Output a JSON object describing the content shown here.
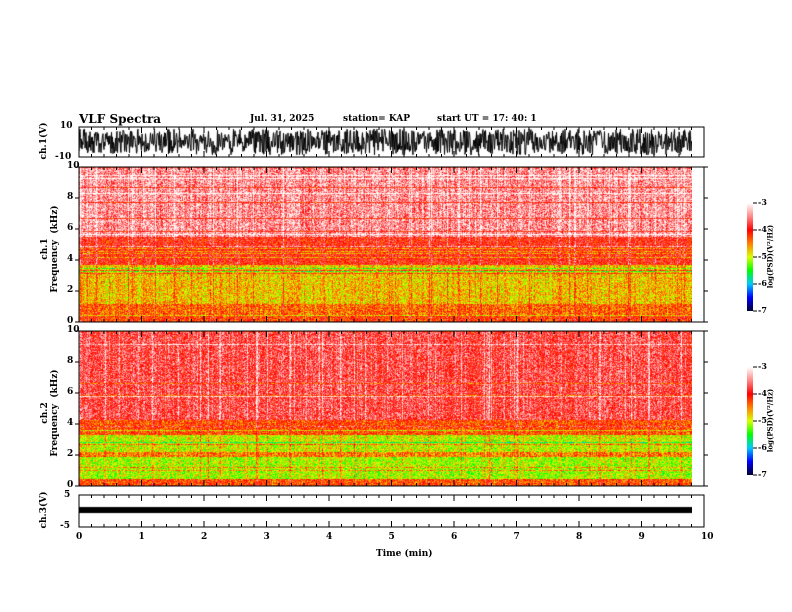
{
  "header": {
    "title": "VLF Spectra",
    "date": "Jul. 31, 2025",
    "station": "station= KAP",
    "start_ut": "start  UT  =   17: 40: 1"
  },
  "chart_data": [
    {
      "type": "line",
      "name": "ch1 waveform",
      "ylabel": "ch.1(V)",
      "ylim": [
        -10,
        10
      ],
      "yticks": [
        "10",
        "-10"
      ],
      "xlim": [
        0,
        10
      ],
      "data_extent_min": 9.8,
      "description_level": "noisy broadband waveform filling most of the range"
    },
    {
      "type": "heatmap",
      "name": "ch1 spectrogram",
      "ylabel": "ch.1\nFrequency  (kHz)",
      "ylim": [
        0,
        10
      ],
      "yticks": [
        "0",
        "2",
        "4",
        "6",
        "8",
        "10"
      ],
      "xlim": [
        0,
        10
      ],
      "bands_kHz_logPSD": [
        [
          0,
          0.5,
          -4.2
        ],
        [
          0.5,
          1.2,
          -4.4
        ],
        [
          1.2,
          3.7,
          -4.75
        ],
        [
          3.7,
          5.5,
          -4.0
        ],
        [
          5.5,
          10,
          -3.45
        ]
      ],
      "colorbar": {
        "label": "log(PSD)(V²/Hz)",
        "range": [
          -7,
          -3
        ],
        "ticks": [
          "-3",
          "-4",
          "-5",
          "-6",
          "-7"
        ]
      }
    },
    {
      "type": "heatmap",
      "name": "ch2 spectrogram",
      "ylabel": "ch.2\nFrequency  (kHz)",
      "ylim": [
        0,
        10
      ],
      "yticks": [
        "0",
        "2",
        "4",
        "6",
        "8",
        "10"
      ],
      "xlim": [
        0,
        10
      ],
      "bands_kHz_logPSD": [
        [
          0,
          0.5,
          -4.3
        ],
        [
          0.5,
          1.9,
          -5.1
        ],
        [
          1.9,
          2.2,
          -4.5
        ],
        [
          2.2,
          3.3,
          -5.0
        ],
        [
          3.3,
          4.3,
          -4.3
        ],
        [
          4.3,
          10,
          -3.75
        ]
      ],
      "colorbar": {
        "label": "log(PSD)(V²/Hz)",
        "range": [
          -7,
          -3
        ],
        "ticks": [
          "-3",
          "-4",
          "-5",
          "-6",
          "-7"
        ]
      }
    },
    {
      "type": "line",
      "name": "ch3 waveform",
      "ylabel": "ch.3(V)",
      "ylim": [
        -5,
        5
      ],
      "yticks": [
        "5",
        "-5"
      ],
      "xlim": [
        0,
        10
      ],
      "level": 0.3
    }
  ],
  "xaxis": {
    "label": "Time  (min)",
    "ticks": [
      "0",
      "1",
      "2",
      "3",
      "4",
      "5",
      "6",
      "7",
      "8",
      "9",
      "10"
    ]
  },
  "colors": {
    "cmap": [
      "#000030",
      "#0000ff",
      "#00c8ff",
      "#00ff00",
      "#d8ff00",
      "#ff8000",
      "#ff0000",
      "#ff8888",
      "#ffffff"
    ]
  }
}
